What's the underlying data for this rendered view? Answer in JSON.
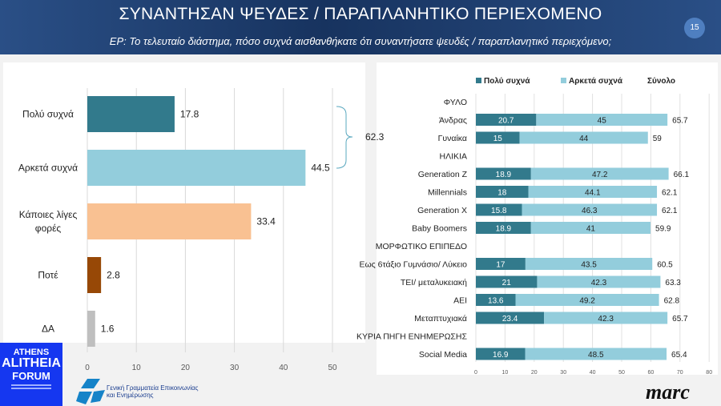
{
  "header": {
    "title": "ΣΥΝΑΝΤΗΣΑΝ ΨΕΥΔΕΣ / ΠΑΡΑΠΛΑΝΗΤΙΚΟ ΠΕΡΙΕΧΟΜΕΝΟ",
    "subtitle": "ΕΡ: Το τελευταίο διάστημα, πόσο συχνά αισθανθήκατε ότι συναντήσατε ψευδές / παραπλανητικό περιεχόμενο;",
    "page_number": "15"
  },
  "logos": {
    "left": "ATHENS ALITHEIA FORUM",
    "gsc_line1": "Γενική Γραμματεία Επικοινωνίας",
    "gsc_line2": "και Ενημέρωσης",
    "right": "marc"
  },
  "chart_data": [
    {
      "type": "bar",
      "orientation": "horizontal",
      "categories": [
        "Πολύ συχνά",
        "Αρκετά συχνά",
        "Κάποιες λίγες φορές",
        "Ποτέ",
        "ΔΑ"
      ],
      "values": [
        17.8,
        44.5,
        33.4,
        2.8,
        1.6
      ],
      "colors": [
        "#327a8c",
        "#93cddc",
        "#f9c192",
        "#974806",
        "#bfbfbf"
      ],
      "xlim": [
        0,
        50
      ],
      "xticks": [
        0,
        10,
        20,
        30,
        40,
        50
      ],
      "grid": true,
      "bracket": {
        "covers": [
          "Πολύ συχνά",
          "Αρκετά συχνά"
        ],
        "label": "62.3"
      }
    },
    {
      "type": "bar",
      "orientation": "horizontal",
      "stacked": true,
      "legend": "top",
      "xlim": [
        0,
        80
      ],
      "xticks": [
        0,
        10,
        20,
        30,
        40,
        50,
        60,
        70,
        80
      ],
      "grid": true,
      "series": [
        {
          "name": "Πολύ συχνά",
          "color": "#327a8c"
        },
        {
          "name": "Αρκετά συχνά",
          "color": "#93cddc"
        }
      ],
      "total_label": "Σύνολο",
      "rows": [
        {
          "label": "ΦΥΛΟ",
          "header": true
        },
        {
          "label": "Άνδρας",
          "values": [
            20.7,
            45
          ],
          "total": 65.7
        },
        {
          "label": "Γυναίκα",
          "values": [
            15,
            44
          ],
          "total": 59
        },
        {
          "label": "ΗΛΙΚΙΑ",
          "header": true
        },
        {
          "label": "Generation Z",
          "values": [
            18.9,
            47.2
          ],
          "total": 66.1
        },
        {
          "label": "Millennials",
          "values": [
            18,
            44.1
          ],
          "total": 62.1
        },
        {
          "label": "Generation X",
          "values": [
            15.8,
            46.3
          ],
          "total": 62.1
        },
        {
          "label": "Baby Boomers",
          "values": [
            18.9,
            41
          ],
          "total": 59.9
        },
        {
          "label": "ΜΟΡΦΩΤΙΚΟ ΕΠΙΠΕΔΟ",
          "header": true
        },
        {
          "label": "Εως 6τάξιο Γυμνάσιο/ Λύκειο",
          "values": [
            17,
            43.5
          ],
          "total": 60.5
        },
        {
          "label": "ΤΕΙ/ μεταλυκειακή",
          "values": [
            21,
            42.3
          ],
          "total": 63.3
        },
        {
          "label": "ΑΕΙ",
          "values": [
            13.6,
            49.2
          ],
          "total": 62.8
        },
        {
          "label": "Μεταπτυχιακά",
          "values": [
            23.4,
            42.3
          ],
          "total": 65.7
        },
        {
          "label": "ΚΥΡΙΑ ΠΗΓΗ ΕΝΗΜΕΡΩΣΗΣ",
          "header": true
        },
        {
          "label": "Social Media",
          "values": [
            16.9,
            48.5
          ],
          "total": 65.4
        }
      ]
    }
  ]
}
